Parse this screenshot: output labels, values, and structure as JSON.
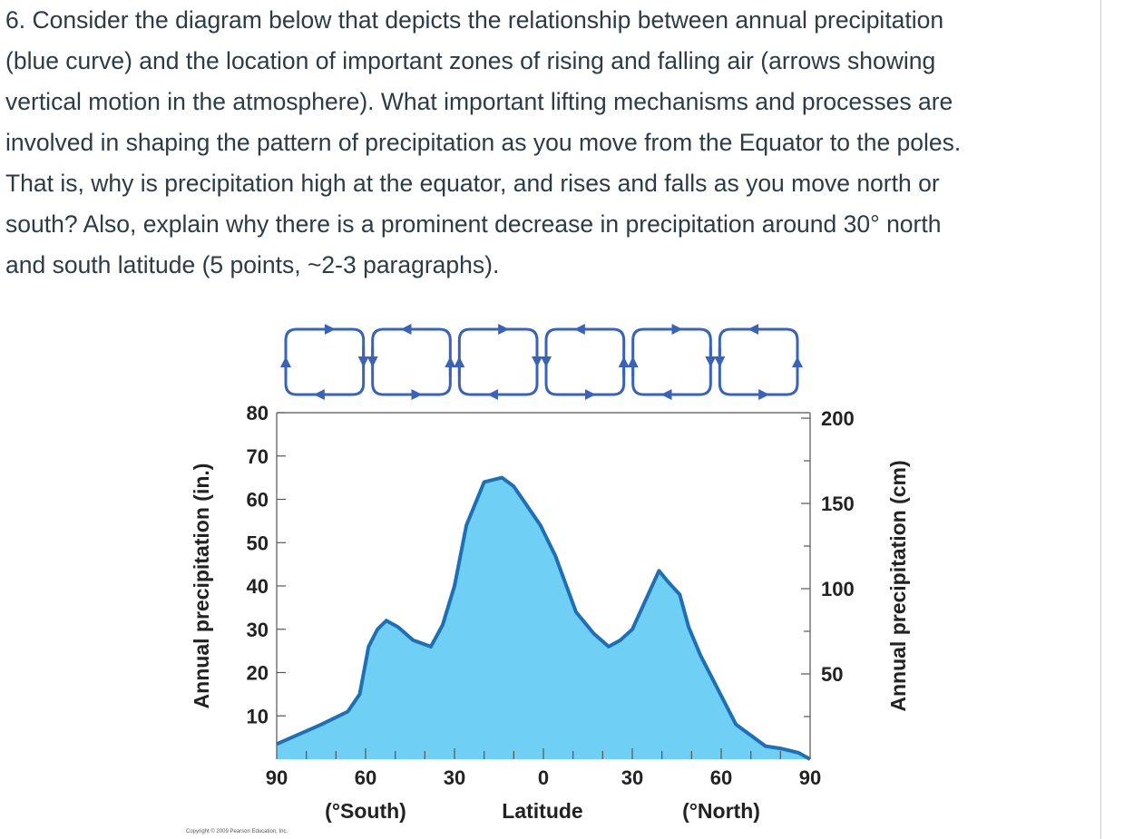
{
  "question": {
    "lines": [
      "6. Consider the diagram below that depicts the relationship between annual precipitation",
      "(blue curve) and the location of important zones of rising and falling air (arrows showing",
      "vertical motion in the atmosphere). What important lifting mechanisms and processes are",
      "involved in shaping the pattern of precipitation as you move from the Equator to the poles.",
      "That is, why is precipitation high at the equator, and rises and falls as you move north or",
      "south? Also, explain why there is a prominent decrease in precipitation around 30° north",
      "and south latitude (5 points, ~2-3 paragraphs)."
    ]
  },
  "chart_data": {
    "type": "area",
    "xlabel": "Latitude",
    "xlabel_south": "(°South)",
    "xlabel_north": "(°North)",
    "ylabel_left": "Annual precipitation (in.)",
    "ylabel_right": "Annual precipitation (cm)",
    "x_tick_labels": [
      "90",
      "60",
      "30",
      "0",
      "30",
      "60",
      "90"
    ],
    "y_left_tick_labels": [
      "10",
      "20",
      "30",
      "40",
      "50",
      "60",
      "70",
      "80"
    ],
    "y_right_tick_labels": [
      "50",
      "100",
      "150",
      "200"
    ],
    "xlim": [
      -90,
      90
    ],
    "ylim_in": [
      0,
      80
    ],
    "ylim_cm": [
      0,
      203.2
    ],
    "colors": {
      "fill": "#6fcff5",
      "stroke": "#1f6fb5",
      "arrows": "#3a63b8"
    },
    "series": [
      {
        "x": [
          -90,
          -75,
          -66,
          -62,
          -59,
          -56,
          -53,
          -49,
          -44,
          -38,
          -34,
          -30,
          -26,
          -20,
          -14,
          -10,
          -6,
          -1,
          4,
          11,
          17,
          22,
          26,
          30,
          34,
          39,
          42,
          46,
          49,
          53,
          59,
          65,
          71,
          75,
          80,
          86,
          90
        ],
        "y_in": [
          3.5,
          8,
          11,
          15,
          26,
          30,
          32,
          30.5,
          27.5,
          26,
          31,
          40,
          54,
          64,
          65,
          63,
          59,
          54,
          47,
          34,
          29,
          26,
          27.5,
          30,
          36,
          43.5,
          41,
          38,
          30.5,
          24,
          16,
          8,
          5,
          3,
          2.5,
          1.5,
          0
        ]
      }
    ],
    "circulation_cells": 6
  },
  "copyright": "Copyright © 2009 Pearson Education, Inc."
}
